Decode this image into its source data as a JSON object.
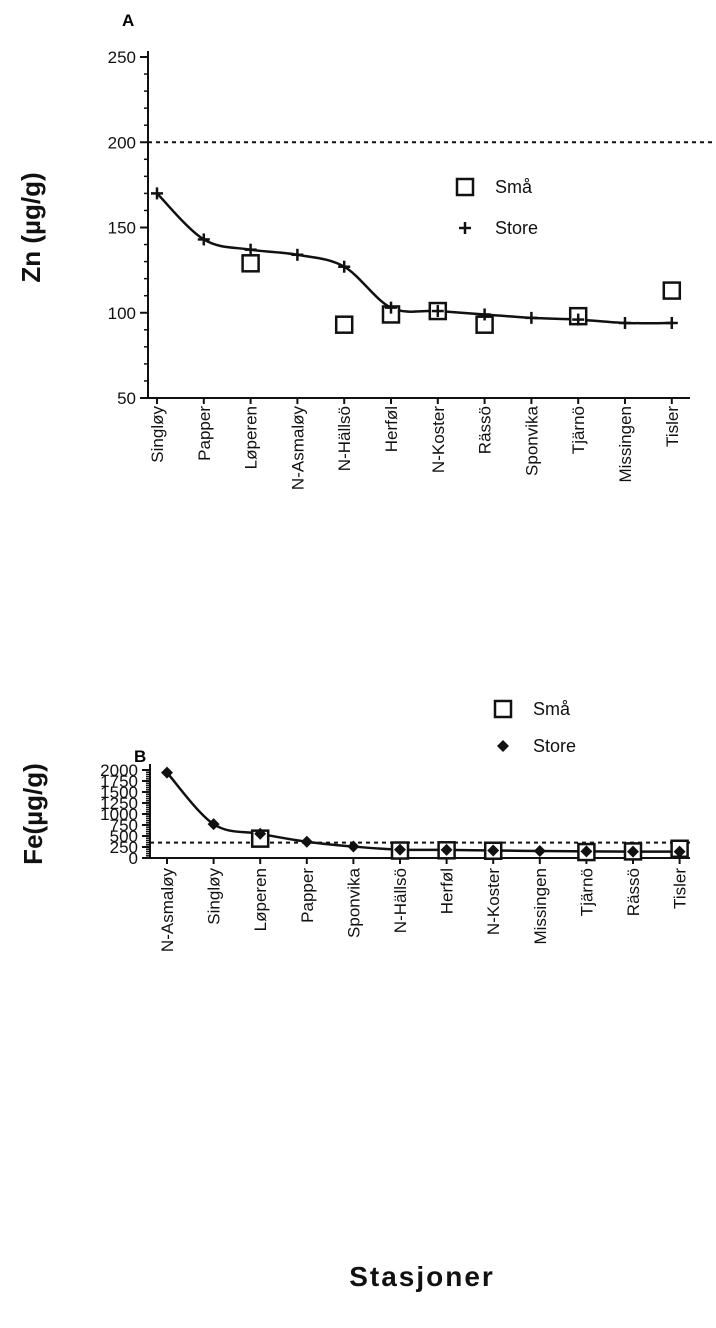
{
  "chart_data": [
    {
      "panel": "A",
      "type": "scatter",
      "ylabel": "Zn (µg/g)",
      "xlabel": "",
      "ylim": [
        50,
        250
      ],
      "yticks": [
        50,
        100,
        150,
        200,
        250
      ],
      "categories": [
        "Singløy",
        "Papper",
        "Løperen",
        "N-Asmaløy",
        "N-Hällsö",
        "Herføl",
        "N-Koster",
        "Rässö",
        "Sponvika",
        "Tjärnö",
        "Missingen",
        "Tisler"
      ],
      "reference_line": 200,
      "legend": {
        "position": "right",
        "entries": [
          "Små",
          "Store"
        ]
      },
      "series": [
        {
          "name": "Små",
          "marker": "square",
          "values": [
            null,
            null,
            129,
            null,
            93,
            99,
            101,
            93,
            null,
            98,
            null,
            113
          ]
        },
        {
          "name": "Store",
          "marker": "plus",
          "values": [
            170,
            143,
            137,
            134,
            127,
            103,
            101,
            99,
            97,
            96,
            94,
            94
          ]
        }
      ]
    },
    {
      "panel": "B",
      "type": "scatter",
      "ylabel": "Fe(µg/g)",
      "xlabel": "Stasjoner",
      "ylim": [
        0,
        2000
      ],
      "yticks": [
        0,
        250,
        500,
        750,
        1000,
        1250,
        1500,
        1750,
        2000
      ],
      "categories": [
        "N-Asmaløy",
        "Singløy",
        "Løperen",
        "Papper",
        "Sponvika",
        "N-Hällsö",
        "Herføl",
        "N-Koster",
        "Missingen",
        "Tjärnö",
        "Rässö",
        "Tisler"
      ],
      "reference_line": 350,
      "legend": {
        "position": "right",
        "entries": [
          "Små",
          "Store"
        ]
      },
      "series": [
        {
          "name": "Små",
          "marker": "square",
          "values": [
            null,
            null,
            440,
            null,
            null,
            170,
            175,
            165,
            null,
            135,
            150,
            210
          ]
        },
        {
          "name": "Store",
          "marker": "diamond",
          "values": [
            1940,
            770,
            550,
            370,
            260,
            190,
            185,
            170,
            160,
            150,
            145,
            145
          ]
        }
      ]
    }
  ]
}
